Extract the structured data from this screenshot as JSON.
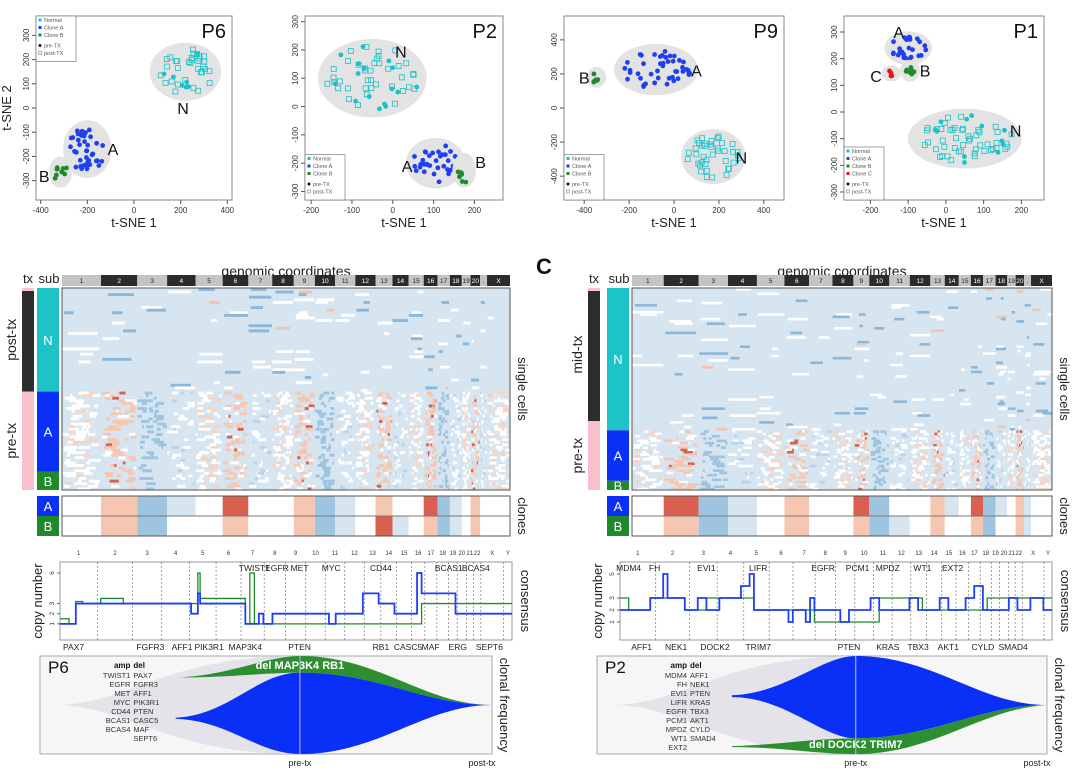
{
  "panel_letters": {
    "C": "C"
  },
  "tsne_common": {
    "xlabel": "t-SNE 1",
    "ylabel": "t-SNE 2",
    "pre_label": "pre-TX",
    "post_label": "post-TX"
  },
  "colors": {
    "normal": "#19c2c9",
    "cloneA": "#1f3ff2",
    "cloneB": "#1f8a2a",
    "cloneC": "#e8141c",
    "hull": "#e3e3e3",
    "pink": "#f7c0cb",
    "dark": "#2d2d2d",
    "subN": "#1cc4c8",
    "subA": "#0a2ff7",
    "subB": "#1f8a2a",
    "baseline": "#d6e5f0"
  },
  "chart_data": [
    {
      "type": "scatter",
      "title": "P6",
      "xlabel": "t-SNE 1",
      "ylabel": "t-SNE 2",
      "xlim": [
        -420,
        420
      ],
      "ylim": [
        -380,
        380
      ],
      "xticks": [
        -400,
        -200,
        0,
        200,
        400
      ],
      "yticks": [
        -300,
        -200,
        -100,
        0,
        100,
        200,
        300
      ],
      "legend": [
        "Normal",
        "Clone A",
        "Clone B",
        "pre-TX",
        "post-TX"
      ],
      "legend_position": "top-left",
      "clusters": [
        {
          "label": "N",
          "clone": "normal",
          "center": [
            220,
            150
          ],
          "spread": [
            120,
            90
          ],
          "count": 40,
          "marker": "mixed-square",
          "label_pos": [
            210,
            0
          ]
        },
        {
          "label": "A",
          "clone": "cloneA",
          "center": [
            -200,
            -170
          ],
          "spread": [
            75,
            90
          ],
          "count": 40,
          "marker": "dot",
          "label_pos": [
            -90,
            -170
          ]
        },
        {
          "label": "B",
          "clone": "cloneB",
          "center": [
            -315,
            -265
          ],
          "spread": [
            25,
            40
          ],
          "count": 9,
          "marker": "dot",
          "label_pos": [
            -385,
            -280
          ]
        }
      ]
    },
    {
      "type": "scatter",
      "title": "P2",
      "xlabel": "t-SNE 1",
      "ylabel": "",
      "xlim": [
        -215,
        270
      ],
      "ylim": [
        -330,
        320
      ],
      "xticks": [
        -200,
        -100,
        0,
        100,
        200
      ],
      "yticks": [
        -300,
        -200,
        -100,
        0,
        100,
        200,
        300
      ],
      "legend": [
        "Normal",
        "Clone A",
        "Clone B",
        "pre-TX",
        "post-TX"
      ],
      "legend_position": "bottom-left",
      "clusters": [
        {
          "label": "N",
          "clone": "normal",
          "center": [
            -50,
            100
          ],
          "spread": [
            110,
            110
          ],
          "count": 55,
          "marker": "mixed-square",
          "label_pos": [
            20,
            195
          ]
        },
        {
          "label": "A",
          "clone": "cloneA",
          "center": [
            105,
            -200
          ],
          "spread": [
            55,
            65
          ],
          "count": 36,
          "marker": "dot",
          "label_pos": [
            35,
            -210
          ]
        },
        {
          "label": "B",
          "clone": "cloneB",
          "center": [
            175,
            -225
          ],
          "spread": [
            15,
            40
          ],
          "count": 6,
          "marker": "dot",
          "label_pos": [
            215,
            -195
          ]
        }
      ]
    },
    {
      "type": "scatter",
      "title": "P9",
      "xlabel": "t-SNE 1",
      "ylabel": "",
      "xlim": [
        -490,
        490
      ],
      "ylim": [
        -540,
        540
      ],
      "xticks": [
        -400,
        -200,
        0,
        200,
        400
      ],
      "yticks": [
        -400,
        -200,
        0,
        200,
        400
      ],
      "legend": [
        "Normal",
        "Clone A",
        "Clone B",
        "pre-TX",
        "post-TX"
      ],
      "legend_position": "bottom-left",
      "clusters": [
        {
          "label": "A",
          "clone": "cloneA",
          "center": [
            -80,
            225
          ],
          "spread": [
            150,
            110
          ],
          "count": 45,
          "marker": "dot",
          "label_pos": [
            100,
            220
          ]
        },
        {
          "label": "B",
          "clone": "cloneB",
          "center": [
            -345,
            180
          ],
          "spread": [
            18,
            30
          ],
          "count": 6,
          "marker": "dot",
          "label_pos": [
            -400,
            180
          ]
        },
        {
          "label": "N",
          "clone": "normal",
          "center": [
            175,
            -285
          ],
          "spread": [
            110,
            120
          ],
          "count": 40,
          "marker": "square",
          "label_pos": [
            300,
            -290
          ]
        }
      ]
    },
    {
      "type": "scatter",
      "title": "P1",
      "xlabel": "t-SNE 1",
      "ylabel": "",
      "xlim": [
        -270,
        260
      ],
      "ylim": [
        -330,
        360
      ],
      "xticks": [
        -200,
        -100,
        0,
        100,
        200
      ],
      "yticks": [
        -300,
        -200,
        -100,
        0,
        100,
        200,
        300
      ],
      "legend": [
        "Normal",
        "Clone A",
        "Clone B",
        "Clone C",
        "pre-TX",
        "post-TX"
      ],
      "legend_position": "bottom-left",
      "clusters": [
        {
          "label": "A",
          "clone": "cloneA",
          "center": [
            -100,
            240
          ],
          "spread": [
            45,
            40
          ],
          "count": 26,
          "marker": "dot",
          "label_pos": [
            -125,
            300
          ]
        },
        {
          "label": "B",
          "clone": "cloneB",
          "center": [
            -95,
            155
          ],
          "spread": [
            12,
            20
          ],
          "count": 7,
          "marker": "dot",
          "label_pos": [
            -55,
            155
          ]
        },
        {
          "label": "C",
          "clone": "cloneC",
          "center": [
            -145,
            145
          ],
          "spread": [
            12,
            10
          ],
          "count": 4,
          "marker": "dot",
          "label_pos": [
            -185,
            135
          ]
        },
        {
          "label": "N",
          "clone": "normal",
          "center": [
            50,
            -100
          ],
          "spread": [
            125,
            85
          ],
          "count": 60,
          "marker": "mixed-square",
          "label_pos": [
            185,
            -70
          ]
        }
      ]
    },
    {
      "type": "heatmap",
      "title": "genomic coordinates",
      "row_groups_tx": [
        {
          "label": "post-tx",
          "rows": 40
        },
        {
          "label": "pre-tx",
          "rows": 38
        }
      ],
      "row_groups_sub": [
        {
          "label": "N",
          "rows": 40
        },
        {
          "label": "A",
          "rows": 31
        },
        {
          "label": "B",
          "rows": 7
        }
      ],
      "chromosomes": [
        "1",
        "2",
        "3",
        "4",
        "5",
        "6",
        "7",
        "8",
        "9",
        "10",
        "11",
        "12",
        "13",
        "14",
        "15",
        "16",
        "17",
        "18",
        "19",
        "20",
        ".",
        "X"
      ],
      "chrom_weights": [
        8.5,
        7.9,
        6.5,
        6.2,
        5.9,
        5.6,
        5.2,
        4.7,
        4.6,
        4.4,
        4.4,
        4.4,
        3.7,
        3.5,
        3.3,
        3.0,
        2.7,
        2.6,
        1.9,
        2.1,
        1.5,
        5.0
      ],
      "right_label": "single cells",
      "clones_label": "clones",
      "clone_rows": [
        "A",
        "B"
      ]
    },
    {
      "type": "line",
      "title": "consensus",
      "ylabel": "copy number",
      "yticks": [
        1,
        2,
        3,
        6
      ],
      "chromosomes": [
        "1",
        "2",
        "3",
        "4",
        "5",
        "6",
        "7",
        "8",
        "9",
        "10",
        "11",
        "12",
        "13",
        "14",
        "15",
        "16",
        "17",
        "18",
        "19",
        "20",
        "21",
        "22",
        "X",
        "Y"
      ],
      "genes_top": [
        "TWIST1",
        "EGFR",
        "MET",
        "MYC",
        "CD44",
        "BCAS1",
        "BCAS4"
      ],
      "genes_bottom": [
        "PAX7",
        "FGFR3",
        "AFF1",
        "PIK3R1",
        "MAP3K4",
        "PTEN",
        "RB1",
        "CASC5",
        "MAF",
        "ERG",
        "SEPT6"
      ],
      "series": [
        {
          "name": "Clone A",
          "color": "#1f3ff2",
          "segments": [
            [
              0,
              1
            ],
            [
              0.035,
              3
            ],
            [
              0.275,
              3
            ],
            [
              0.29,
              2
            ],
            [
              0.305,
              4
            ],
            [
              0.31,
              3
            ],
            [
              0.4,
              3
            ],
            [
              0.41,
              1
            ],
            [
              0.44,
              2
            ],
            [
              0.45,
              1
            ],
            [
              0.47,
              2
            ],
            [
              0.59,
              2
            ],
            [
              0.595,
              1
            ],
            [
              0.61,
              2
            ],
            [
              0.665,
              2
            ],
            [
              0.67,
              4
            ],
            [
              0.7,
              4
            ],
            [
              0.705,
              3
            ],
            [
              0.735,
              3
            ],
            [
              0.74,
              2
            ],
            [
              0.785,
              2
            ],
            [
              0.79,
              6
            ],
            [
              0.8,
              4
            ],
            [
              0.87,
              4
            ],
            [
              0.875,
              2
            ]
          ]
        },
        {
          "name": "Clone B",
          "color": "#1f8a2a",
          "segments": [
            [
              0,
              1.5
            ],
            [
              0.02,
              1
            ],
            [
              0.035,
              3.2
            ],
            [
              0.05,
              3
            ],
            [
              0.09,
              3.5
            ],
            [
              0.14,
              3
            ],
            [
              0.305,
              6
            ],
            [
              0.31,
              3.5
            ],
            [
              0.41,
              1
            ],
            [
              0.42,
              6
            ],
            [
              0.43,
              1
            ],
            [
              0.74,
              1
            ],
            [
              0.8,
              3
            ]
          ]
        }
      ]
    },
    {
      "type": "area",
      "title": "P6",
      "right_label": "clonal frequency",
      "x_labels": [
        "pre-tx",
        "post-tx"
      ],
      "amp_header": "amp",
      "del_header": "del",
      "amp": [
        "TWIST1",
        "EGFR",
        "MET",
        "MYC",
        "CD44",
        "BCAS1",
        "BCAS4"
      ],
      "del": [
        "PAX7",
        "FGFR3",
        "AFF1",
        "PIK3R1",
        "PTEN",
        "CASC5",
        "MAF",
        "SEPT6"
      ],
      "clone_label": "del  MAP3K4  RB1",
      "series": [
        {
          "name": "Clone A",
          "color": "#0a2ff7",
          "pre_tx_fraction": 0.83
        },
        {
          "name": "Clone B",
          "color": "#2d8f2f",
          "pre_tx_fraction": 0.17
        }
      ]
    },
    {
      "type": "heatmap",
      "title": "genomic coordinates",
      "row_groups_tx": [
        {
          "label": "mid-tx",
          "rows": 58
        },
        {
          "label": "pre-tx",
          "rows": 30
        }
      ],
      "row_groups_sub": [
        {
          "label": "N",
          "rows": 62
        },
        {
          "label": "A",
          "rows": 22
        },
        {
          "label": "B",
          "rows": 4
        }
      ],
      "chromosomes": [
        "1",
        "2",
        "3",
        "4",
        "5",
        "6",
        "7",
        "8",
        "9",
        "10",
        "11",
        "12",
        "13",
        "14",
        "15",
        "16",
        "17",
        "18",
        "19",
        "20",
        ".",
        "X"
      ],
      "chrom_weights": [
        6.8,
        7.5,
        6.3,
        6.2,
        5.9,
        5.3,
        5.0,
        4.5,
        3.4,
        4.3,
        4.4,
        4.4,
        3.1,
        3.0,
        2.6,
        2.6,
        2.7,
        2.5,
        1.8,
        1.8,
        1.5,
        4.5
      ],
      "right_label": "single cells",
      "clones_label": "clones",
      "clone_rows": [
        "A",
        "B"
      ]
    },
    {
      "type": "line",
      "title": "consensus",
      "ylabel": "copy number",
      "yticks": [
        1,
        2,
        3,
        5
      ],
      "chromosomes": [
        "1",
        "2",
        "3",
        "4",
        "5",
        "6",
        "7",
        "8",
        "9",
        "10",
        "11",
        "12",
        "13",
        "14",
        "15",
        "16",
        "17",
        "18",
        "19",
        "20",
        "21",
        "22",
        "X",
        "Y"
      ],
      "genes_top": [
        "MDM4",
        "FH",
        "EVI1",
        "LIFR",
        "EGFR",
        "PCM1",
        "MPDZ",
        "WT1",
        "EXT2"
      ],
      "genes_bottom": [
        "AFF1",
        "NEK1",
        "DOCK2",
        "TRIM7",
        "PTEN",
        "KRAS",
        "TBX3",
        "AKT1",
        "CYLD",
        "SMAD4"
      ],
      "series": [
        {
          "name": "Clone A",
          "color": "#1f3ff2",
          "segments": [
            [
              0,
              2
            ],
            [
              0.07,
              3
            ],
            [
              0.1,
              5
            ],
            [
              0.11,
              3
            ],
            [
              0.15,
              2
            ],
            [
              0.18,
              3
            ],
            [
              0.2,
              2
            ],
            [
              0.23,
              3
            ],
            [
              0.27,
              3
            ],
            [
              0.28,
              4
            ],
            [
              0.3,
              5
            ],
            [
              0.31,
              2
            ],
            [
              0.38,
              2
            ],
            [
              0.39,
              1
            ],
            [
              0.4,
              2
            ],
            [
              0.42,
              2
            ],
            [
              0.43,
              1
            ],
            [
              0.44,
              3
            ],
            [
              0.45,
              2
            ],
            [
              0.5,
              2
            ],
            [
              0.51,
              1
            ],
            [
              0.53,
              2
            ],
            [
              0.58,
              3
            ],
            [
              0.6,
              2
            ],
            [
              0.67,
              3
            ],
            [
              0.69,
              2
            ],
            [
              0.74,
              3
            ],
            [
              0.76,
              2
            ],
            [
              0.8,
              3
            ],
            [
              0.82,
              4
            ],
            [
              0.84,
              2
            ],
            [
              0.9,
              3
            ],
            [
              0.92,
              2
            ],
            [
              0.95,
              3
            ],
            [
              0.98,
              2
            ]
          ]
        },
        {
          "name": "Clone B",
          "color": "#1f8a2a",
          "segments": [
            [
              0,
              3
            ],
            [
              0.02,
              2
            ],
            [
              0.07,
              3
            ],
            [
              0.15,
              2
            ],
            [
              0.2,
              3
            ],
            [
              0.3,
              3
            ],
            [
              0.31,
              2
            ],
            [
              0.45,
              1
            ],
            [
              0.58,
              1
            ],
            [
              0.6,
              3
            ],
            [
              0.7,
              2
            ],
            [
              0.85,
              3
            ]
          ]
        }
      ]
    },
    {
      "type": "area",
      "title": "P2",
      "right_label": "clonal frequency",
      "x_labels": [
        "pre-tx",
        "post-tx"
      ],
      "amp_header": "amp",
      "del_header": "del",
      "amp": [
        "MDM4",
        "FH",
        "EVI1",
        "LIFR",
        "EGFR",
        "PCM1",
        "MPDZ",
        "WT1",
        "EXT2"
      ],
      "del": [
        "AFF1",
        "NEK1",
        "PTEN",
        "KRAS",
        "TBX3",
        "AKT1",
        "CYLD",
        "SMAD4"
      ],
      "clone_label": "del DOCK2   TRIM7",
      "series": [
        {
          "name": "Clone A",
          "color": "#0a2ff7",
          "pre_tx_fraction": 0.84
        },
        {
          "name": "Clone B",
          "color": "#2d8f2f",
          "pre_tx_fraction": 0.16
        }
      ]
    }
  ]
}
